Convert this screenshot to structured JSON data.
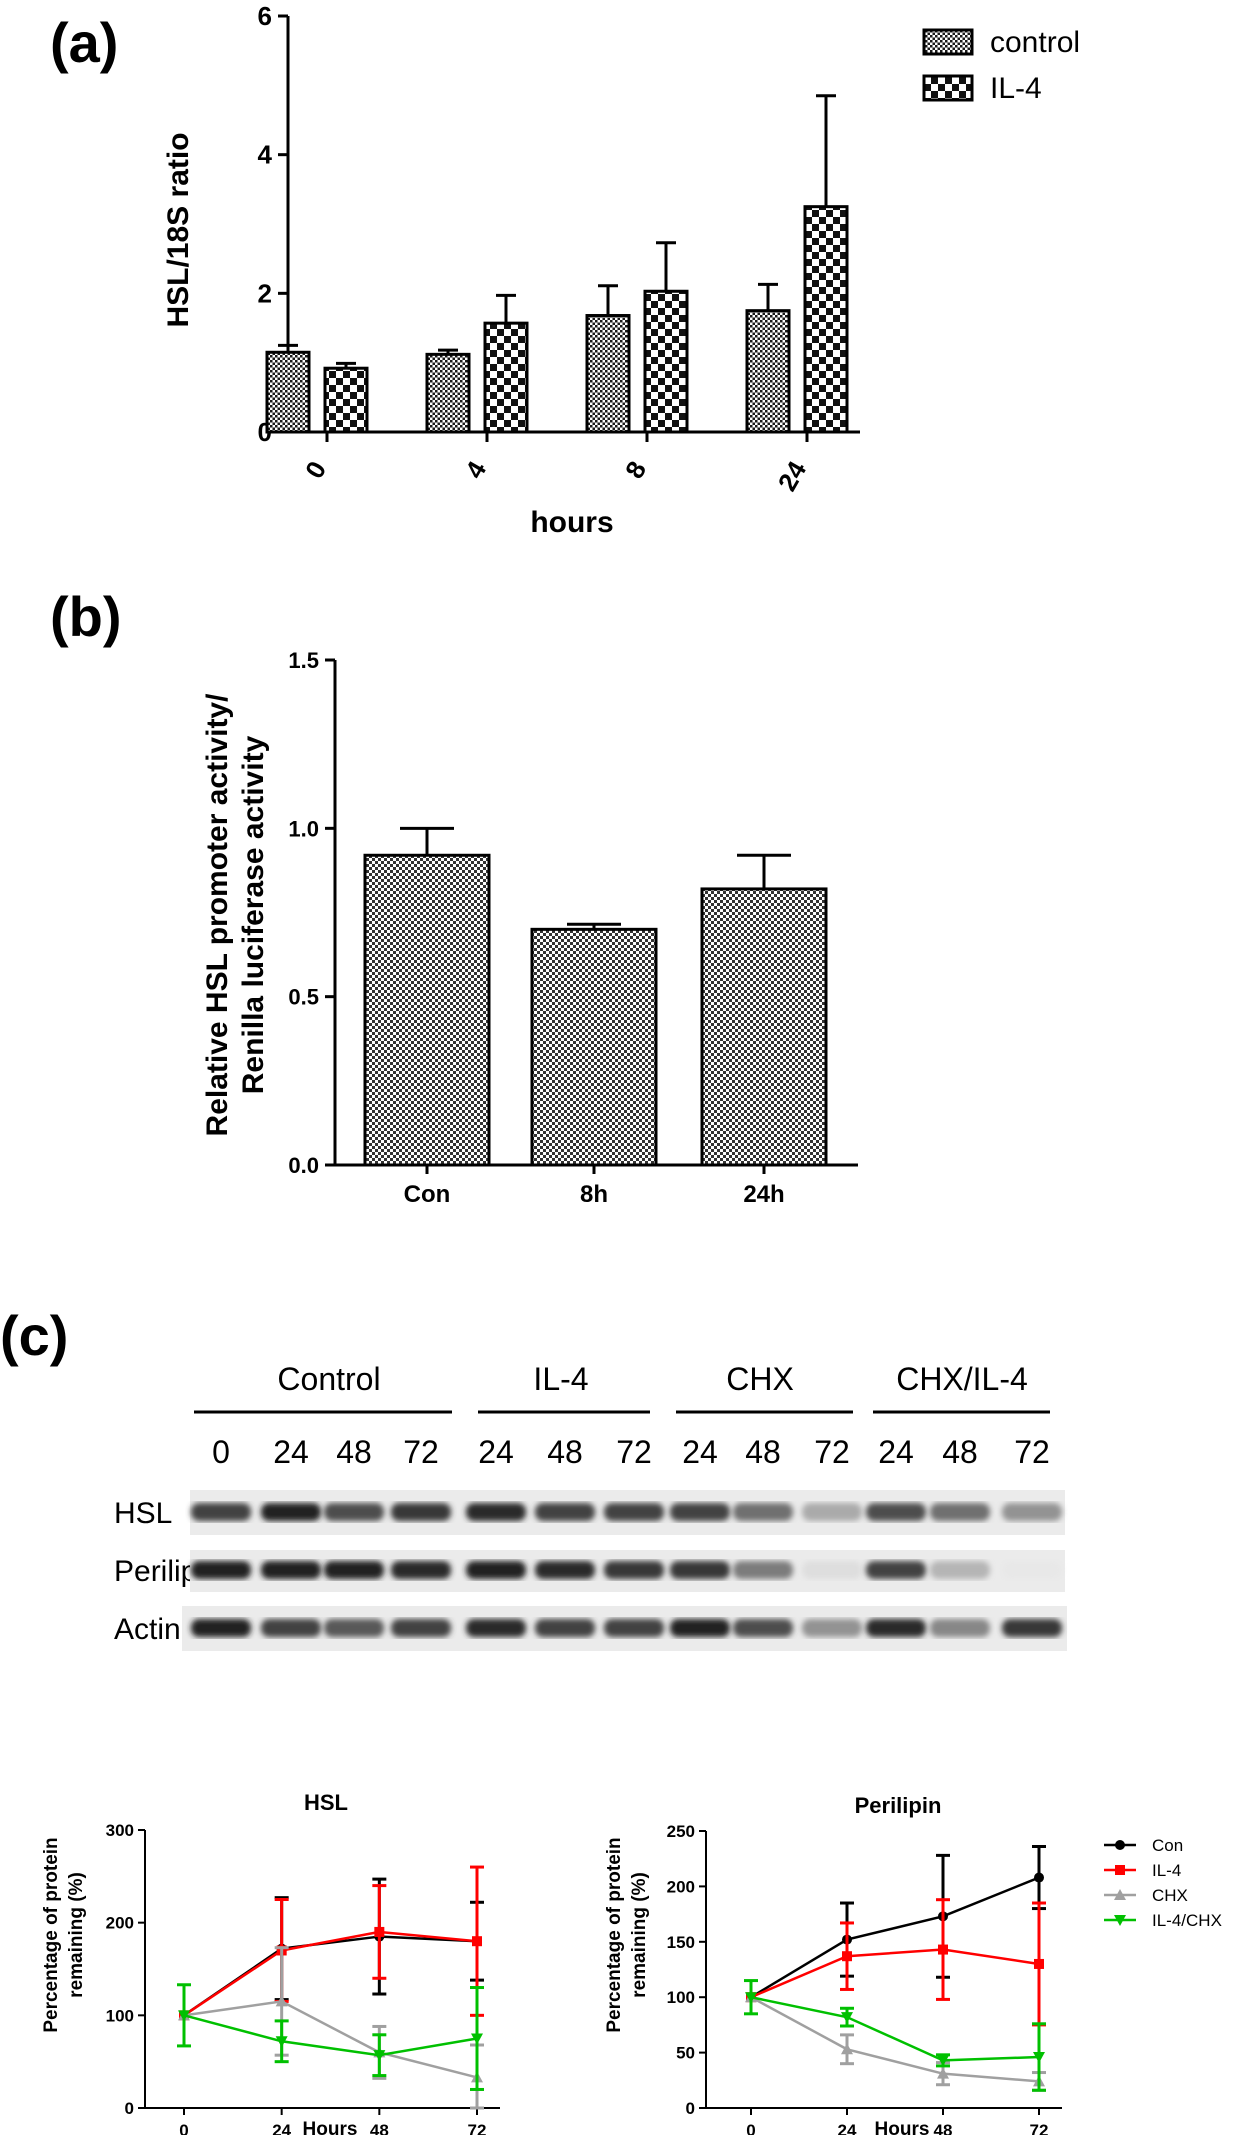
{
  "panels": {
    "a": {
      "label": "(a)"
    },
    "b": {
      "label": "(b)"
    },
    "c": {
      "label": "(c)"
    }
  },
  "chart_data": [
    {
      "id": "a",
      "type": "bar",
      "categories": [
        "0",
        "4",
        "8",
        "24"
      ],
      "series": [
        {
          "name": "control",
          "values": [
            1.15,
            1.12,
            1.68,
            1.75
          ],
          "errors": [
            0.1,
            0.06,
            0.43,
            0.38
          ]
        },
        {
          "name": "IL-4",
          "values": [
            0.92,
            1.57,
            2.03,
            3.25
          ],
          "errors": [
            0.07,
            0.4,
            0.7,
            1.6
          ]
        }
      ],
      "xlabel": "hours",
      "ylabel": "HSL/18S ratio",
      "ylim": [
        0,
        6
      ],
      "yticks": [
        "0",
        "2",
        "4",
        "6"
      ],
      "legend": "top-right"
    },
    {
      "id": "b",
      "type": "bar",
      "categories": [
        "Con",
        "8h",
        "24h"
      ],
      "values": [
        0.92,
        0.7,
        0.82
      ],
      "errors": [
        0.08,
        0.015,
        0.1
      ],
      "ylabel_line1": "Relative HSL promoter activity/",
      "ylabel_line2": "Renilla luciferase activity",
      "ylim": [
        0,
        1.5
      ],
      "yticks": [
        "0.0",
        "0.5",
        "1.0",
        "1.5"
      ]
    },
    {
      "id": "c-hsl",
      "type": "line",
      "title": "HSL",
      "x": [
        0,
        24,
        48,
        72
      ],
      "series": [
        {
          "name": "Con",
          "values": [
            100,
            172,
            185,
            180
          ],
          "errors": [
            0,
            55,
            62,
            42
          ]
        },
        {
          "name": "IL-4",
          "values": [
            100,
            170,
            190,
            180
          ],
          "errors": [
            0,
            55,
            50,
            80
          ]
        },
        {
          "name": "CHX",
          "values": [
            100,
            115,
            60,
            33
          ],
          "errors": [
            0,
            58,
            28,
            35
          ]
        },
        {
          "name": "IL-4/CHX",
          "values": [
            100,
            72,
            57,
            75
          ],
          "errors": [
            33,
            22,
            22,
            55
          ]
        }
      ],
      "xlabel": "Hours",
      "ylabel_line1": "Percentage of protein",
      "ylabel_line2": "remaining (%)",
      "ylim": [
        0,
        300
      ],
      "yticks": [
        "0",
        "100",
        "200",
        "300"
      ],
      "xticks": [
        "0",
        "24",
        "48",
        "72"
      ]
    },
    {
      "id": "c-perilipin",
      "type": "line",
      "title": "Perilipin",
      "x": [
        0,
        24,
        48,
        72
      ],
      "series": [
        {
          "name": "Con",
          "values": [
            100,
            152,
            173,
            208
          ],
          "errors": [
            0,
            33,
            55,
            28
          ]
        },
        {
          "name": "IL-4",
          "values": [
            100,
            137,
            143,
            130
          ],
          "errors": [
            0,
            30,
            45,
            55
          ]
        },
        {
          "name": "CHX",
          "values": [
            100,
            53,
            31,
            24
          ],
          "errors": [
            0,
            13,
            10,
            8
          ]
        },
        {
          "name": "IL-4/CHX",
          "values": [
            100,
            82,
            43,
            46
          ],
          "errors": [
            15,
            8,
            5,
            30
          ]
        }
      ],
      "xlabel": "Hours",
      "ylabel_line1": "Percentage of protein",
      "ylabel_line2": "remaining (%)",
      "ylim": [
        0,
        250
      ],
      "yticks": [
        "0",
        "50",
        "100",
        "150",
        "200",
        "250"
      ],
      "xticks": [
        "0",
        "24",
        "48",
        "72"
      ],
      "legend": "right"
    }
  ],
  "blot": {
    "groups": [
      "Control",
      "IL-4",
      "CHX",
      "CHX/IL-4"
    ],
    "lanes": [
      "0",
      "24",
      "48",
      "72",
      "24",
      "48",
      "72",
      "24",
      "48",
      "72",
      "24",
      "48",
      "72"
    ],
    "rows": [
      {
        "name": "HSL",
        "intensity": [
          0.8,
          0.95,
          0.75,
          0.85,
          0.9,
          0.8,
          0.8,
          0.8,
          0.6,
          0.35,
          0.75,
          0.6,
          0.45
        ]
      },
      {
        "name": "Perilipin",
        "intensity": [
          0.95,
          0.95,
          0.95,
          0.9,
          0.95,
          0.9,
          0.85,
          0.85,
          0.55,
          0.12,
          0.8,
          0.3,
          0.08
        ]
      },
      {
        "name": "Actin",
        "intensity": [
          0.95,
          0.8,
          0.7,
          0.8,
          0.9,
          0.8,
          0.8,
          0.95,
          0.75,
          0.45,
          0.9,
          0.5,
          0.85
        ]
      }
    ]
  },
  "colors": {
    "Con": "#000000",
    "IL-4": "#ff0000",
    "CHX": "#a0a0a0",
    "IL-4/CHX": "#00c000"
  }
}
